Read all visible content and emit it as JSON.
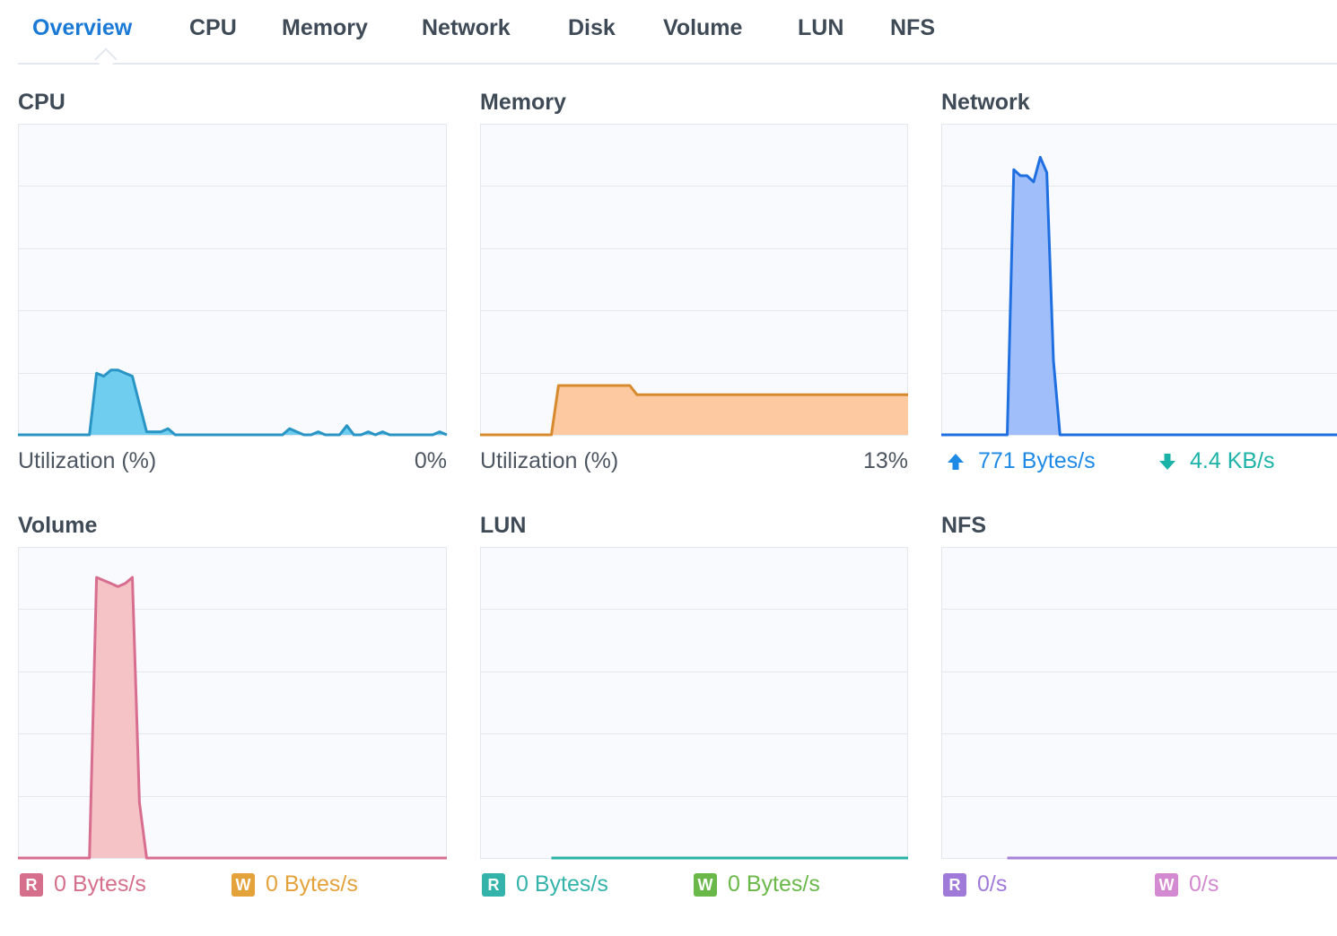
{
  "tabs": [
    {
      "label": "Overview",
      "active": true
    },
    {
      "label": "CPU"
    },
    {
      "label": "Memory"
    },
    {
      "label": "Network"
    },
    {
      "label": "Disk"
    },
    {
      "label": "Volume"
    },
    {
      "label": "LUN"
    },
    {
      "label": "NFS"
    }
  ],
  "panels": {
    "cpu": {
      "title": "CPU",
      "label": "Utilization  (%)",
      "value": "0%",
      "color": "#2a95c5",
      "fill": "#6fcdf0"
    },
    "memory": {
      "title": "Memory",
      "label": "Utilization  (%)",
      "value": "13%",
      "color": "#d78a2d",
      "fill": "#fdc9a0"
    },
    "network": {
      "title": "Network",
      "upload": "771 Bytes/s",
      "download": "4.4 KB/s",
      "color": "#1f6fe0",
      "fill": "#a0bffa",
      "upload_color": "#1f8ae6",
      "download_color": "#1bb3a8"
    },
    "volume": {
      "title": "Volume",
      "read_badge": "R",
      "read": "0 Bytes/s",
      "write_badge": "W",
      "write": "0 Bytes/s",
      "color": "#d86e8f",
      "fill": "#f5c2c6",
      "read_color": "#d56f8c",
      "write_color": "#e4a23b"
    },
    "lun": {
      "title": "LUN",
      "read_badge": "R",
      "read": "0 Bytes/s",
      "write_badge": "W",
      "write": "0 Bytes/s",
      "color": "#2bb3a6",
      "read_color": "#34b3ab",
      "write_color": "#6bb84a"
    },
    "nfs": {
      "title": "NFS",
      "read_badge": "R",
      "read": "0/s",
      "write_badge": "W",
      "write": "0/s",
      "color": "#a681d6",
      "read_color": "#a07ad8",
      "write_color": "#d48ad0"
    }
  },
  "chart_data": [
    {
      "type": "area",
      "name": "cpu",
      "x": [
        0,
        1,
        2,
        3,
        4,
        5,
        6,
        7,
        8,
        9,
        10,
        11,
        12,
        13,
        14,
        15,
        16,
        17,
        18,
        19,
        20,
        21,
        22,
        23,
        24,
        25,
        26,
        27,
        28,
        29,
        30,
        31,
        32,
        33,
        34,
        35,
        36,
        37,
        38,
        39,
        40,
        41,
        42,
        43,
        44,
        45,
        46,
        47,
        48,
        49,
        50,
        51,
        52,
        53,
        54,
        55,
        56,
        57,
        58,
        59,
        60
      ],
      "values": [
        0,
        0,
        0,
        0,
        0,
        0,
        0,
        0,
        0,
        0,
        0,
        20,
        19,
        21,
        21,
        20,
        19,
        10,
        1,
        1,
        1,
        2,
        0,
        0,
        0,
        0,
        0,
        0,
        0,
        0,
        0,
        0,
        0,
        0,
        0,
        0,
        0,
        0,
        2,
        1,
        0,
        0,
        1,
        0,
        0,
        0,
        3,
        0,
        0,
        1,
        0,
        1,
        0,
        0,
        0,
        0,
        0,
        0,
        0,
        1,
        0
      ],
      "ylim": [
        0,
        100
      ]
    },
    {
      "type": "area",
      "name": "memory",
      "x": [
        0,
        1,
        2,
        3,
        4,
        5,
        6,
        7,
        8,
        9,
        10,
        11,
        12,
        13,
        14,
        15,
        16,
        17,
        18,
        19,
        20,
        21,
        22,
        23,
        24,
        25,
        26,
        27,
        28,
        29,
        30,
        31,
        32,
        33,
        34,
        35,
        36,
        37,
        38,
        39,
        40,
        41,
        42,
        43,
        44,
        45,
        46,
        47,
        48,
        49,
        50,
        51,
        52,
        53,
        54,
        55,
        56,
        57,
        58,
        59,
        60
      ],
      "values": [
        0,
        0,
        0,
        0,
        0,
        0,
        0,
        0,
        0,
        0,
        0,
        16,
        16,
        16,
        16,
        16,
        16,
        16,
        16,
        16,
        16,
        16,
        13,
        13,
        13,
        13,
        13,
        13,
        13,
        13,
        13,
        13,
        13,
        13,
        13,
        13,
        13,
        13,
        13,
        13,
        13,
        13,
        13,
        13,
        13,
        13,
        13,
        13,
        13,
        13,
        13,
        13,
        13,
        13,
        13,
        13,
        13,
        13,
        13,
        13,
        13
      ],
      "ylim": [
        0,
        100
      ]
    },
    {
      "type": "area",
      "name": "network",
      "x": [
        0,
        1,
        2,
        3,
        4,
        5,
        6,
        7,
        8,
        9,
        10,
        11,
        12,
        13,
        14,
        15,
        16,
        17,
        18,
        19,
        20,
        21,
        22,
        23,
        24,
        25,
        26,
        27,
        28,
        29,
        30,
        31,
        32,
        33,
        34,
        35,
        36,
        37,
        38,
        39,
        40,
        41,
        42,
        43,
        44,
        45,
        46,
        47,
        48,
        49,
        50,
        51,
        52,
        53,
        54,
        55,
        56,
        57,
        58,
        59,
        60
      ],
      "values": [
        0,
        0,
        0,
        0,
        0,
        0,
        0,
        0,
        0,
        0,
        0,
        86,
        84,
        84,
        82,
        90,
        85,
        24,
        0,
        0,
        0,
        0,
        0,
        0,
        0,
        0,
        0,
        0,
        0,
        0,
        0,
        0,
        0,
        0,
        0,
        0,
        0,
        0,
        0,
        0,
        0,
        0,
        0,
        0,
        0,
        0,
        0,
        0,
        0,
        0,
        0,
        0,
        0,
        0,
        0,
        0,
        0,
        0,
        0,
        0,
        0
      ],
      "ylim": [
        0,
        100
      ]
    },
    {
      "type": "area",
      "name": "volume",
      "x": [
        0,
        1,
        2,
        3,
        4,
        5,
        6,
        7,
        8,
        9,
        10,
        11,
        12,
        13,
        14,
        15,
        16,
        17,
        18,
        19,
        20,
        21,
        22,
        23,
        24,
        25,
        26,
        27,
        28,
        29,
        30,
        31,
        32,
        33,
        34,
        35,
        36,
        37,
        38,
        39,
        40,
        41,
        42,
        43,
        44,
        45,
        46,
        47,
        48,
        49,
        50,
        51,
        52,
        53,
        54,
        55,
        56,
        57,
        58,
        59,
        60
      ],
      "values": [
        0,
        0,
        0,
        0,
        0,
        0,
        0,
        0,
        0,
        0,
        0,
        91,
        90,
        89,
        88,
        89,
        91,
        18,
        0,
        0,
        0,
        0,
        0,
        0,
        0,
        0,
        0,
        0,
        0,
        0,
        0,
        0,
        0,
        0,
        0,
        0,
        0,
        0,
        0,
        0,
        0,
        0,
        0,
        0,
        0,
        0,
        0,
        0,
        0,
        0,
        0,
        0,
        0,
        0,
        0,
        0,
        0,
        0,
        0,
        0,
        0
      ],
      "ylim": [
        0,
        100
      ]
    },
    {
      "type": "line",
      "name": "lun",
      "x": [
        0,
        1,
        2,
        3,
        4,
        5,
        6,
        7,
        8,
        9,
        10,
        11,
        12,
        13,
        14,
        15,
        16,
        17,
        18,
        19,
        20,
        21,
        22,
        23,
        24,
        25,
        26,
        27,
        28,
        29,
        30,
        31,
        32,
        33,
        34,
        35,
        36,
        37,
        38,
        39,
        40,
        41,
        42,
        43,
        44,
        45,
        46,
        47,
        48,
        49,
        50,
        51,
        52,
        53,
        54,
        55,
        56,
        57,
        58,
        59,
        60
      ],
      "values": [
        null,
        null,
        null,
        null,
        null,
        null,
        null,
        null,
        null,
        null,
        0,
        0,
        0,
        0,
        0,
        0,
        0,
        0,
        0,
        0,
        0,
        0,
        0,
        0,
        0,
        0,
        0,
        0,
        0,
        0,
        0,
        0,
        0,
        0,
        0,
        0,
        0,
        0,
        0,
        0,
        0,
        0,
        0,
        0,
        0,
        0,
        0,
        0,
        0,
        0,
        0,
        0,
        0,
        0,
        0,
        0,
        0,
        0,
        0,
        0,
        0
      ],
      "ylim": [
        0,
        100
      ]
    },
    {
      "type": "line",
      "name": "nfs",
      "x": [
        0,
        1,
        2,
        3,
        4,
        5,
        6,
        7,
        8,
        9,
        10,
        11,
        12,
        13,
        14,
        15,
        16,
        17,
        18,
        19,
        20,
        21,
        22,
        23,
        24,
        25,
        26,
        27,
        28,
        29,
        30,
        31,
        32,
        33,
        34,
        35,
        36,
        37,
        38,
        39,
        40,
        41,
        42,
        43,
        44,
        45,
        46,
        47,
        48,
        49,
        50,
        51,
        52,
        53,
        54,
        55,
        56,
        57,
        58,
        59,
        60
      ],
      "values": [
        null,
        null,
        null,
        null,
        null,
        null,
        null,
        null,
        null,
        null,
        0,
        0,
        0,
        0,
        0,
        0,
        0,
        0,
        0,
        0,
        0,
        0,
        0,
        0,
        0,
        0,
        0,
        0,
        0,
        0,
        0,
        0,
        0,
        0,
        0,
        0,
        0,
        0,
        0,
        0,
        0,
        0,
        0,
        0,
        0,
        0,
        0,
        0,
        0,
        0,
        0,
        0,
        0,
        0,
        0,
        0,
        0,
        0,
        0,
        0,
        0
      ],
      "ylim": [
        0,
        100
      ]
    }
  ]
}
